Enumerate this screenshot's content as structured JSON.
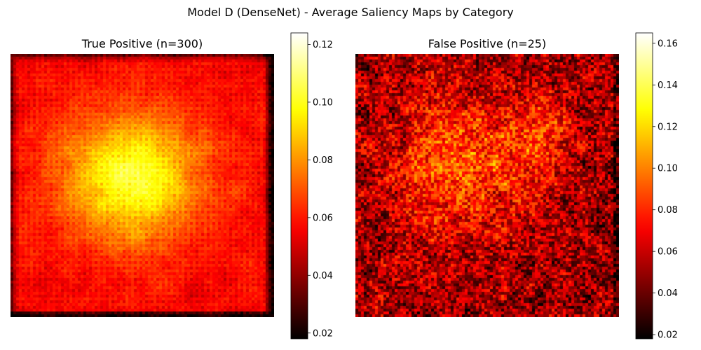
{
  "figure": {
    "suptitle": "Model D (DenseNet) - Average Saliency Maps by Category"
  },
  "chart_data": [
    {
      "type": "heatmap",
      "title": "True Positive (n=300)",
      "colormap": "hot",
      "colormap_stops": [
        "#000000",
        "#e60000",
        "#ff0000",
        "#ffcc00",
        "#ffff00",
        "#ffffff"
      ],
      "colorbar": {
        "vmin": 0.018,
        "vmax": 0.124,
        "ticks": [
          0.02,
          0.04,
          0.06,
          0.08,
          0.1,
          0.12
        ],
        "tick_labels": [
          "0.02",
          "0.04",
          "0.06",
          "0.08",
          "0.10",
          "0.12"
        ]
      },
      "grid": false,
      "axes_visible": false,
      "pattern": "central-blob",
      "summary": {
        "background_level": 0.058,
        "center_peak": 0.105,
        "center_x_frac": 0.46,
        "center_y_frac": 0.47,
        "border_level": 0.03
      }
    },
    {
      "type": "heatmap",
      "title": "False Positive (n=25)",
      "colormap": "hot",
      "colormap_stops": [
        "#000000",
        "#e60000",
        "#ff0000",
        "#ffcc00",
        "#ffff00",
        "#ffffff"
      ],
      "colorbar": {
        "vmin": 0.018,
        "vmax": 0.165,
        "ticks": [
          0.02,
          0.04,
          0.06,
          0.08,
          0.1,
          0.12,
          0.14,
          0.16
        ],
        "tick_labels": [
          "0.02",
          "0.04",
          "0.06",
          "0.08",
          "0.10",
          "0.12",
          "0.14",
          "0.16"
        ]
      },
      "grid": false,
      "axes_visible": false,
      "pattern": "noisy-diffuse",
      "summary": {
        "background_level": 0.055,
        "peak_level": 0.12,
        "hotspot_regions": "center-left and center"
      }
    }
  ]
}
